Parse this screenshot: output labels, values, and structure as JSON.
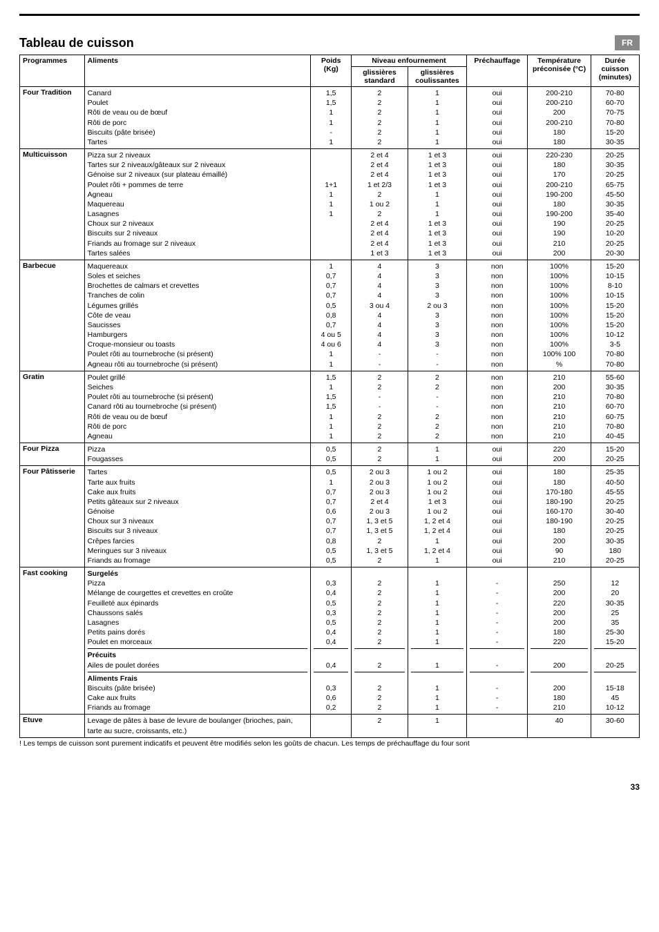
{
  "lang_tag": "FR",
  "title": "Tableau de cuisson",
  "headers": {
    "programmes": "Programmes",
    "aliments": "Aliments",
    "poids": "Poids (Kg)",
    "niveau": "Niveau enfournement",
    "gliss_std": "glissières standard",
    "gliss_coul": "glissières coulissantes",
    "prechauffage": "Préchauffage",
    "temperature": "Température préconisée (°C)",
    "duree": "Durée cuisson (minutes)"
  },
  "sections": [
    {
      "prog": "Four Tradition",
      "rows": [
        {
          "a": "Canard",
          "p": "1,5",
          "s": "2",
          "c": "1",
          "h": "oui",
          "t": "200-210",
          "d": "70-80"
        },
        {
          "a": "Poulet",
          "p": "1,5",
          "s": "2",
          "c": "1",
          "h": "oui",
          "t": "200-210",
          "d": "60-70"
        },
        {
          "a": "Rôti de veau ou de bœuf",
          "p": "1",
          "s": "2",
          "c": "1",
          "h": "oui",
          "t": "200",
          "d": "70-75"
        },
        {
          "a": "Rôti de porc",
          "p": "1",
          "s": "2",
          "c": "1",
          "h": "oui",
          "t": "200-210",
          "d": "70-80"
        },
        {
          "a": "Biscuits (pâte brisée)",
          "p": "-",
          "s": "2",
          "c": "1",
          "h": "oui",
          "t": "180",
          "d": "15-20"
        },
        {
          "a": "Tartes",
          "p": "1",
          "s": "2",
          "c": "1",
          "h": "oui",
          "t": "180",
          "d": "30-35"
        }
      ]
    },
    {
      "prog": "Multicuisson",
      "rows": [
        {
          "a": "Pizza sur 2 niveaux",
          "p": "",
          "s": "2 et 4",
          "c": "1 et 3",
          "h": "oui",
          "t": "220-230",
          "d": "20-25"
        },
        {
          "a": "Tartes sur 2 niveaux/gâteaux sur 2 niveaux",
          "p": "",
          "s": "2 et 4",
          "c": "1 et 3",
          "h": "oui",
          "t": "180",
          "d": "30-35"
        },
        {
          "a": "Génoise sur 2 niveaux (sur plateau émaillé)",
          "p": "",
          "s": "2 et 4",
          "c": "1 et 3",
          "h": "oui",
          "t": "170",
          "d": "20-25"
        },
        {
          "a": "Poulet rôti + pommes de terre",
          "p": "1+1",
          "s": "1 et 2/3",
          "c": "1 et 3",
          "h": "oui",
          "t": "200-210",
          "d": "65-75"
        },
        {
          "a": "Agneau",
          "p": "1",
          "s": "2",
          "c": "1",
          "h": "oui",
          "t": "190-200",
          "d": "45-50"
        },
        {
          "a": "Maquereau",
          "p": "1",
          "s": "1 ou 2",
          "c": "1",
          "h": "oui",
          "t": "180",
          "d": "30-35"
        },
        {
          "a": "Lasagnes",
          "p": "1",
          "s": "2",
          "c": "1",
          "h": "oui",
          "t": "190-200",
          "d": "35-40"
        },
        {
          "a": "Choux sur 2 niveaux",
          "p": "",
          "s": "2 et 4",
          "c": "1 et 3",
          "h": "oui",
          "t": "190",
          "d": "20-25"
        },
        {
          "a": "Biscuits sur 2 niveaux",
          "p": "",
          "s": "2 et 4",
          "c": "1 et 3",
          "h": "oui",
          "t": "190",
          "d": "10-20"
        },
        {
          "a": "Friands au fromage sur 2 niveaux",
          "p": "",
          "s": "2 et 4",
          "c": "1 et 3",
          "h": "oui",
          "t": "210",
          "d": "20-25"
        },
        {
          "a": "Tartes salées",
          "p": "",
          "s": "1 et 3",
          "c": "1 et 3",
          "h": "oui",
          "t": "200",
          "d": "20-30"
        }
      ]
    },
    {
      "prog": "Barbecue",
      "rows": [
        {
          "a": "Maquereaux",
          "p": "1",
          "s": "4",
          "c": "3",
          "h": "non",
          "t": "100%",
          "d": "15-20"
        },
        {
          "a": "Soles et seiches",
          "p": "0,7",
          "s": "4",
          "c": "3",
          "h": "non",
          "t": "100%",
          "d": "10-15"
        },
        {
          "a": "Brochettes de calmars et crevettes",
          "p": "0,7",
          "s": "4",
          "c": "3",
          "h": "non",
          "t": "100%",
          "d": "8-10"
        },
        {
          "a": "Tranches de colin",
          "p": "0,7",
          "s": "4",
          "c": "3",
          "h": "non",
          "t": "100%",
          "d": "10-15"
        },
        {
          "a": "Légumes grillés",
          "p": "0,5",
          "s": "3 ou 4",
          "c": "2 ou 3",
          "h": "non",
          "t": "100%",
          "d": "15-20"
        },
        {
          "a": "Côte de veau",
          "p": "0,8",
          "s": "4",
          "c": "3",
          "h": "non",
          "t": "100%",
          "d": "15-20"
        },
        {
          "a": "Saucisses",
          "p": "0,7",
          "s": "4",
          "c": "3",
          "h": "non",
          "t": "100%",
          "d": "15-20"
        },
        {
          "a": "Hamburgers",
          "p": "4 ou 5",
          "s": "4",
          "c": "3",
          "h": "non",
          "t": "100%",
          "d": "10-12"
        },
        {
          "a": "Croque-monsieur ou toasts",
          "p": "4 ou 6",
          "s": "4",
          "c": "3",
          "h": "non",
          "t": "100%",
          "d": "3-5"
        },
        {
          "a": "Poulet rôti au tournebroche (si présent)",
          "p": "1",
          "s": "-",
          "c": "-",
          "h": "non",
          "t": "100% 100",
          "d": "70-80"
        },
        {
          "a": "Agneau rôti au tournebroche (si présent)",
          "p": "1",
          "s": "-",
          "c": "-",
          "h": "non",
          "t": "%",
          "d": "70-80"
        }
      ]
    },
    {
      "prog": "Gratin",
      "rows": [
        {
          "a": "Poulet grillé",
          "p": "1,5",
          "s": "2",
          "c": "2",
          "h": "non",
          "t": "210",
          "d": "55-60"
        },
        {
          "a": "Seiches",
          "p": "1",
          "s": "2",
          "c": "2",
          "h": "non",
          "t": "200",
          "d": "30-35"
        },
        {
          "a": "Poulet rôti au tournebroche (si présent)",
          "p": "1,5",
          "s": "-",
          "c": "-",
          "h": "non",
          "t": "210",
          "d": "70-80"
        },
        {
          "a": "Canard rôti au tournebroche (si présent)",
          "p": "1,5",
          "s": "-",
          "c": "-",
          "h": "non",
          "t": "210",
          "d": "60-70"
        },
        {
          "a": "Rôti de veau ou de bœuf",
          "p": "1",
          "s": "2",
          "c": "2",
          "h": "non",
          "t": "210",
          "d": "60-75"
        },
        {
          "a": "Rôti de porc",
          "p": "1",
          "s": "2",
          "c": "2",
          "h": "non",
          "t": "210",
          "d": "70-80"
        },
        {
          "a": "Agneau",
          "p": "1",
          "s": "2",
          "c": "2",
          "h": "non",
          "t": "210",
          "d": "40-45"
        }
      ]
    },
    {
      "prog": "Four Pizza",
      "rows": [
        {
          "a": "Pizza",
          "p": "0,5",
          "s": "2",
          "c": "1",
          "h": "oui",
          "t": "220",
          "d": "15-20"
        },
        {
          "a": "Fougasses",
          "p": "0,5",
          "s": "2",
          "c": "1",
          "h": "oui",
          "t": "200",
          "d": "20-25"
        }
      ]
    },
    {
      "prog": "Four Pâtisserie",
      "rows": [
        {
          "a": "Tartes",
          "p": "0,5",
          "s": "2 ou 3",
          "c": "1 ou 2",
          "h": "oui",
          "t": "180",
          "d": "25-35"
        },
        {
          "a": "Tarte aux fruits",
          "p": "1",
          "s": "2 ou 3",
          "c": "1 ou 2",
          "h": "oui",
          "t": "180",
          "d": "40-50"
        },
        {
          "a": "Cake aux fruits",
          "p": "0,7",
          "s": "2 ou 3",
          "c": "1 ou 2",
          "h": "oui",
          "t": "170-180",
          "d": "45-55"
        },
        {
          "a": "Petits gâteaux sur 2 niveaux",
          "p": "0,7",
          "s": "2 et 4",
          "c": "1 et 3",
          "h": "oui",
          "t": "180-190",
          "d": "20-25"
        },
        {
          "a": "Génoise",
          "p": "0,6",
          "s": "2 ou 3",
          "c": "1 ou 2",
          "h": "oui",
          "t": "160-170",
          "d": "30-40"
        },
        {
          "a": "Choux sur 3 niveaux",
          "p": "0,7",
          "s": "1, 3 et 5",
          "c": "1, 2 et 4",
          "h": "oui",
          "t": "180-190",
          "d": "20-25"
        },
        {
          "a": "Biscuits sur 3 niveaux",
          "p": "0,7",
          "s": "1, 3 et 5",
          "c": "1, 2 et 4",
          "h": "oui",
          "t": "180",
          "d": "20-25"
        },
        {
          "a": "Crêpes farcies",
          "p": "0,8",
          "s": "2",
          "c": "1",
          "h": "oui",
          "t": "200",
          "d": "30-35"
        },
        {
          "a": "Meringues sur 3 niveaux",
          "p": "0,5",
          "s": "1, 3 et 5",
          "c": "1, 2 et 4",
          "h": "oui",
          "t": "90",
          "d": "180"
        },
        {
          "a": "Friands au fromage",
          "p": "0,5",
          "s": "2",
          "c": "1",
          "h": "oui",
          "t": "210",
          "d": "20-25"
        }
      ]
    },
    {
      "prog": "Fast cooking",
      "groups": [
        {
          "title": "Surgelés",
          "rows": [
            {
              "a": "Pizza",
              "p": "0,3",
              "s": "2",
              "c": "1",
              "h": "-",
              "t": "250",
              "d": "12"
            },
            {
              "a": "Mélange de courgettes et crevettes en croûte",
              "p": "0,4",
              "s": "2",
              "c": "1",
              "h": "-",
              "t": "200",
              "d": "20"
            },
            {
              "a": "Feuilleté aux épinards",
              "p": "0,5",
              "s": "2",
              "c": "1",
              "h": "-",
              "t": "220",
              "d": "30-35"
            },
            {
              "a": "Chaussons salés",
              "p": "0,3",
              "s": "2",
              "c": "1",
              "h": "-",
              "t": "200",
              "d": "25"
            },
            {
              "a": "Lasagnes",
              "p": "0,5",
              "s": "2",
              "c": "1",
              "h": "-",
              "t": "200",
              "d": "35"
            },
            {
              "a": "Petits pains dorés",
              "p": "0,4",
              "s": "2",
              "c": "1",
              "h": "-",
              "t": "180",
              "d": "25-30"
            },
            {
              "a": "Poulet en morceaux",
              "p": "0,4",
              "s": "2",
              "c": "1",
              "h": "-",
              "t": "220",
              "d": "15-20"
            }
          ]
        },
        {
          "title": "Précuits",
          "rows": [
            {
              "a": "Ailes de poulet dorées",
              "p": "0,4",
              "s": "2",
              "c": "1",
              "h": "-",
              "t": "200",
              "d": "20-25"
            }
          ]
        },
        {
          "title": "Aliments Frais",
          "rows": [
            {
              "a": "Biscuits (pâte brisée)",
              "p": "0,3",
              "s": "2",
              "c": "1",
              "h": "-",
              "t": "200",
              "d": "15-18"
            },
            {
              "a": "Cake aux fruits",
              "p": "0,6",
              "s": "2",
              "c": "1",
              "h": "-",
              "t": "180",
              "d": "45"
            },
            {
              "a": "Friands au fromage",
              "p": "0,2",
              "s": "2",
              "c": "1",
              "h": "-",
              "t": "210",
              "d": "10-12"
            }
          ]
        }
      ]
    },
    {
      "prog": "Etuve",
      "rows": [
        {
          "a": "Levage de pâtes à base de levure de boulanger (brioches, pain, tarte au sucre, croissants, etc.)",
          "p": "",
          "s": "2",
          "c": "1",
          "h": "",
          "t": "40",
          "d": "30-60"
        }
      ]
    }
  ],
  "footnote": "! Les temps de cuisson sont purement indicatifs  et peuvent être modifiés selon les goûts de chacun. Les temps de préchauffage du four sont",
  "page_number": "33"
}
